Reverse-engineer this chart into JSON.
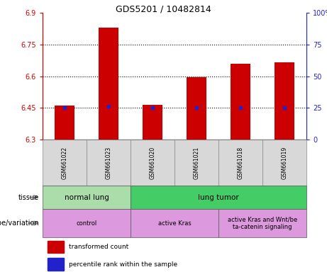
{
  "title": "GDS5201 / 10482814",
  "samples": [
    "GSM661022",
    "GSM661023",
    "GSM661020",
    "GSM661021",
    "GSM661018",
    "GSM661019"
  ],
  "bar_tops": [
    6.46,
    6.83,
    6.465,
    6.595,
    6.66,
    6.665
  ],
  "bar_bottom": 6.3,
  "percentile_values": [
    6.45,
    6.457,
    6.45,
    6.45,
    6.452,
    6.452
  ],
  "ylim": [
    6.3,
    6.9
  ],
  "yticks_left": [
    6.3,
    6.45,
    6.6,
    6.75,
    6.9
  ],
  "yticks_right_vals": [
    0,
    25,
    50,
    75,
    100
  ],
  "dotted_lines": [
    6.45,
    6.6,
    6.75
  ],
  "bar_color": "#cc0000",
  "percentile_color": "#2222cc",
  "tissue_labels": [
    {
      "label": "normal lung",
      "start": 0,
      "end": 2,
      "color": "#aaddaa"
    },
    {
      "label": "lung tumor",
      "start": 2,
      "end": 6,
      "color": "#44cc66"
    }
  ],
  "genotype_labels": [
    {
      "label": "control",
      "start": 0,
      "end": 2,
      "color": "#dd99dd"
    },
    {
      "label": "active Kras",
      "start": 2,
      "end": 4,
      "color": "#dd99dd"
    },
    {
      "label": "active Kras and Wnt/be\nta-catenin signaling",
      "start": 4,
      "end": 6,
      "color": "#dd99dd"
    }
  ],
  "legend_items": [
    {
      "label": "transformed count",
      "color": "#cc0000"
    },
    {
      "label": "percentile rank within the sample",
      "color": "#2222cc"
    }
  ],
  "left_axis_color": "#cc0000",
  "right_axis_color": "#2222cc",
  "sample_bg_color": "#d8d8d8",
  "bar_width": 0.45
}
